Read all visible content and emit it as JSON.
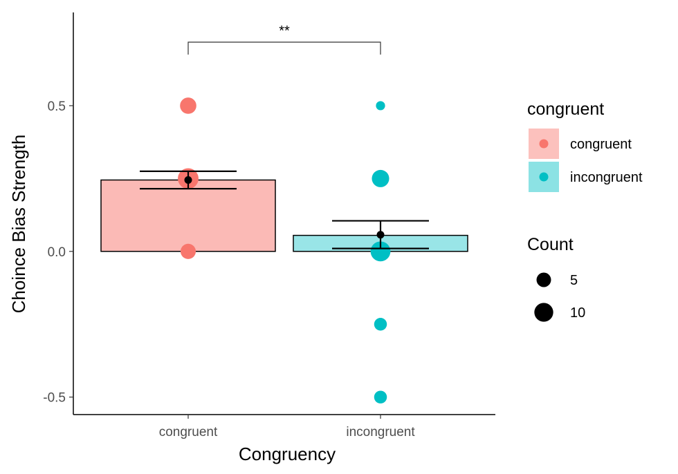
{
  "chart_data": {
    "type": "bar",
    "title": "",
    "xlabel": "Congruency",
    "ylabel": "Choince Bias Strength",
    "ylim": [
      -0.56,
      0.82
    ],
    "y_ticks": [
      -0.5,
      0.0,
      0.5
    ],
    "y_tick_labels": [
      "-0.5",
      "0.0",
      "0.5"
    ],
    "categories": [
      "congruent",
      "incongruent"
    ],
    "bars": [
      {
        "category": "congruent",
        "value": 0.245,
        "fill": "#F8766D",
        "fill_opacity": 0.5
      },
      {
        "category": "incongruent",
        "value": 0.055,
        "fill": "#00BFC4",
        "fill_opacity": 0.4
      }
    ],
    "means": [
      {
        "category": "congruent",
        "mean": 0.245,
        "error_low": 0.215,
        "error_high": 0.275
      },
      {
        "category": "incongruent",
        "mean": 0.057,
        "error_low": 0.01,
        "error_high": 0.105
      }
    ],
    "points": [
      {
        "category": "congruent",
        "y": 0.5,
        "count": 6,
        "color": "#F8766D"
      },
      {
        "category": "congruent",
        "y": 0.25,
        "count": 11,
        "color": "#F8766D"
      },
      {
        "category": "congruent",
        "y": 0.0,
        "count": 5,
        "color": "#F8766D"
      },
      {
        "category": "incongruent",
        "y": 0.5,
        "count": 1,
        "color": "#00BFC4"
      },
      {
        "category": "incongruent",
        "y": 0.25,
        "count": 7,
        "color": "#00BFC4"
      },
      {
        "category": "incongruent",
        "y": 0.0,
        "count": 10,
        "color": "#00BFC4"
      },
      {
        "category": "incongruent",
        "y": -0.25,
        "count": 3,
        "color": "#00BFC4"
      },
      {
        "category": "incongruent",
        "y": -0.5,
        "count": 3,
        "color": "#00BFC4"
      }
    ],
    "significance": {
      "from": "congruent",
      "to": "incongruent",
      "label": "**",
      "y": 0.775
    },
    "legend": {
      "placement": "right",
      "color": {
        "title": "congruent",
        "entries": [
          {
            "label": "congruent",
            "color": "#F8766D"
          },
          {
            "label": "incongruent",
            "color": "#00BFC4"
          }
        ]
      },
      "size": {
        "title": "Count",
        "entries": [
          {
            "label": "5",
            "value": 5
          },
          {
            "label": "10",
            "value": 10
          }
        ]
      }
    },
    "grid": false
  }
}
